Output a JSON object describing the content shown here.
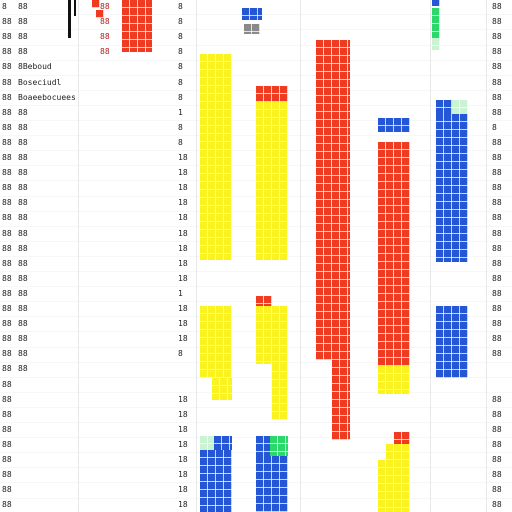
{
  "palette": {
    "yellow": "#fbf31f",
    "red": "#ee3b22",
    "blue": "#2456d6",
    "green": "#2bd86a",
    "mint": "#c9f3d2",
    "gray": "#8a8a8a"
  },
  "rows": [
    {
      "a": "8",
      "b": "88",
      "c": "88",
      "d": "8",
      "e": "88"
    },
    {
      "a": "88",
      "b": "88",
      "c": "88",
      "d": "8",
      "e": "88"
    },
    {
      "a": "88",
      "b": "88",
      "c": "88",
      "d": "8",
      "e": "88"
    },
    {
      "a": "88",
      "b": "88",
      "c": "88",
      "d": "8",
      "e": "88"
    },
    {
      "a": "88",
      "b": "8Beboud",
      "c": "",
      "d": "8",
      "e": "88"
    },
    {
      "a": "88",
      "b": "Boseciudl",
      "c": "",
      "d": "8",
      "e": "88"
    },
    {
      "a": "88",
      "b": "Boaeebocuees",
      "c": "",
      "d": "8",
      "e": "88"
    },
    {
      "a": "88",
      "b": "88",
      "c": "",
      "d": "1",
      "e": "88"
    },
    {
      "a": "88",
      "b": "88",
      "c": "",
      "d": "8",
      "e": "8"
    },
    {
      "a": "88",
      "b": "88",
      "c": "",
      "d": "8",
      "e": "88"
    },
    {
      "a": "88",
      "b": "88",
      "c": "",
      "d": "18",
      "e": "88"
    },
    {
      "a": "88",
      "b": "88",
      "c": "",
      "d": "18",
      "e": "88"
    },
    {
      "a": "88",
      "b": "88",
      "c": "",
      "d": "18",
      "e": "88"
    },
    {
      "a": "88",
      "b": "88",
      "c": "",
      "d": "18",
      "e": "88"
    },
    {
      "a": "88",
      "b": "88",
      "c": "",
      "d": "18",
      "e": "88"
    },
    {
      "a": "88",
      "b": "88",
      "c": "",
      "d": "18",
      "e": "88"
    },
    {
      "a": "88",
      "b": "88",
      "c": "",
      "d": "18",
      "e": "88"
    },
    {
      "a": "88",
      "b": "88",
      "c": "",
      "d": "18",
      "e": "88"
    },
    {
      "a": "88",
      "b": "88",
      "c": "",
      "d": "18",
      "e": "88"
    },
    {
      "a": "88",
      "b": "88",
      "c": "",
      "d": "1",
      "e": "88"
    },
    {
      "a": "88",
      "b": "88",
      "c": "",
      "d": "18",
      "e": "88"
    },
    {
      "a": "88",
      "b": "88",
      "c": "",
      "d": "18",
      "e": "88"
    },
    {
      "a": "88",
      "b": "88",
      "c": "",
      "d": "18",
      "e": "88"
    },
    {
      "a": "88",
      "b": "88",
      "c": "",
      "d": "8",
      "e": "88"
    },
    {
      "a": "88",
      "b": "88",
      "c": "",
      "d": "",
      "e": ""
    },
    {
      "a": "88",
      "b": "",
      "c": "",
      "d": "",
      "e": ""
    },
    {
      "a": "88",
      "b": "",
      "c": "",
      "d": "18",
      "e": "88"
    },
    {
      "a": "88",
      "b": "",
      "c": "",
      "d": "18",
      "e": "88"
    },
    {
      "a": "88",
      "b": "",
      "c": "",
      "d": "18",
      "e": "88"
    },
    {
      "a": "88",
      "b": "",
      "c": "",
      "d": "18",
      "e": "88"
    },
    {
      "a": "88",
      "b": "",
      "c": "",
      "d": "18",
      "e": "88"
    },
    {
      "a": "88",
      "b": "",
      "c": "",
      "d": "18",
      "e": "88"
    },
    {
      "a": "88",
      "b": "",
      "c": "",
      "d": "18",
      "e": "88"
    },
    {
      "a": "88",
      "b": "",
      "c": "",
      "d": "18",
      "e": "88"
    }
  ]
}
